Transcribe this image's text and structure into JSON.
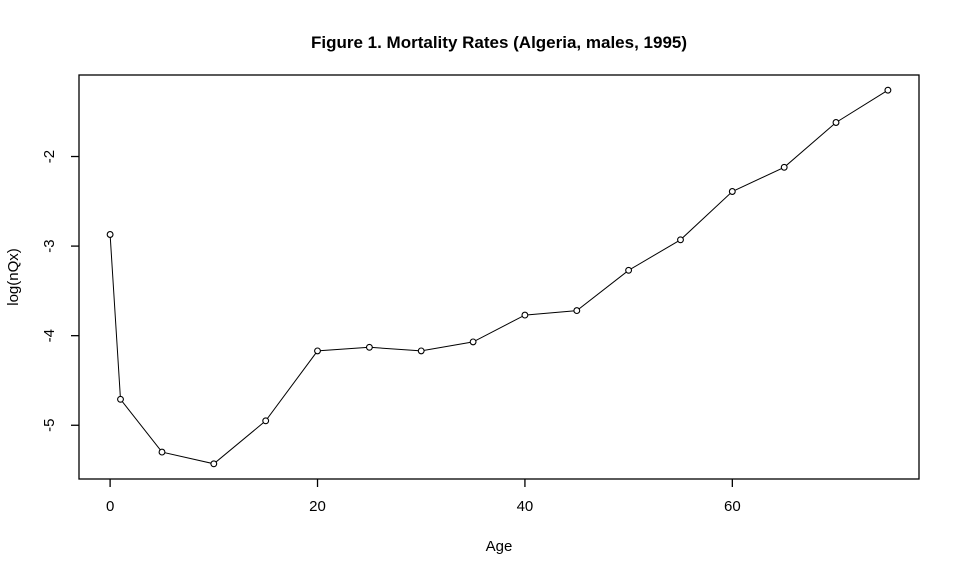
{
  "chart_data": {
    "type": "line",
    "title": "Figure 1. Mortality Rates (Algeria, males, 1995)",
    "xlabel": "Age",
    "ylabel": "log(nQx)",
    "series": [
      {
        "name": "mortality",
        "x": [
          0,
          1,
          5,
          10,
          15,
          20,
          25,
          30,
          35,
          40,
          45,
          50,
          55,
          60,
          65,
          70,
          75
        ],
        "y": [
          -2.87,
          -4.71,
          -5.3,
          -5.43,
          -4.95,
          -4.17,
          -4.13,
          -4.17,
          -4.07,
          -3.77,
          -3.72,
          -3.27,
          -2.93,
          -2.39,
          -2.12,
          -1.62,
          -1.26
        ]
      }
    ],
    "x_ticks": [
      0,
      20,
      40,
      60
    ],
    "y_ticks": [
      -5,
      -4,
      -3,
      -2
    ],
    "xlim": [
      -3,
      78
    ],
    "ylim": [
      -5.6,
      -1.09
    ],
    "marker": "open-circle",
    "line_color": "#000000",
    "marker_stroke_color": "#000000",
    "marker_fill_color": "#ffffff",
    "axis_color": "#000000",
    "background_color": "#ffffff",
    "grid": false,
    "legend": null
  }
}
